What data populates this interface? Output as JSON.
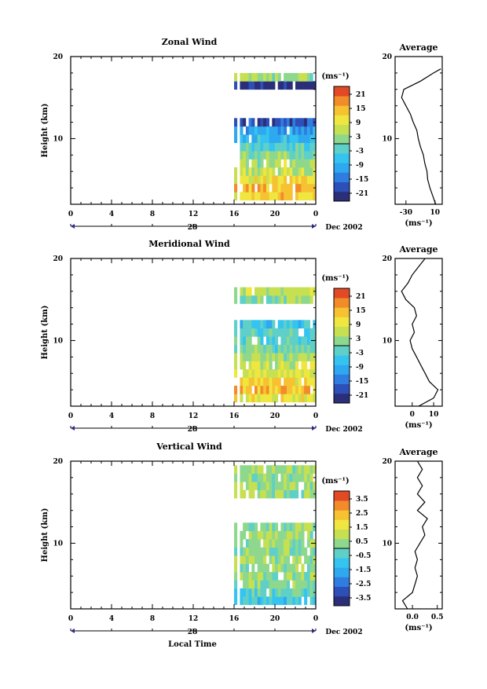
{
  "chart_data": [
    {
      "type": "heatmap",
      "title": "Zonal Wind",
      "ylabel": "Height (km)",
      "ylim": [
        2,
        20
      ],
      "y_ticks": [
        10,
        20
      ],
      "x_ticks": [
        "0",
        "4",
        "8",
        "12",
        "16",
        "20",
        "0"
      ],
      "date_day": "28",
      "date_label": "Dec 2002",
      "colorbar": {
        "unit": "(ms⁻¹)",
        "ticks": [
          "21",
          "15",
          "9",
          "3",
          "-3",
          "-9",
          "-15",
          "-21"
        ]
      },
      "data_start_hour": 16,
      "data_end_hour": 24,
      "rows": [
        {
          "height": 3,
          "value": 12
        },
        {
          "height": 4,
          "value": 14
        },
        {
          "height": 5,
          "value": 10
        },
        {
          "height": 6,
          "value": 6
        },
        {
          "height": 7,
          "value": 4
        },
        {
          "height": 8,
          "value": 2
        },
        {
          "height": 9,
          "value": -3
        },
        {
          "height": 10,
          "value": -6
        },
        {
          "height": 11,
          "value": -10
        },
        {
          "height": 12,
          "value": -18
        },
        {
          "height": 16.5,
          "value": -22
        },
        {
          "height": 17.5,
          "value": 3
        }
      ],
      "average": {
        "title": "Average",
        "xlabel": "(ms⁻¹)",
        "x_ticks": [
          "-30",
          "10"
        ],
        "xlim": [
          -45,
          20
        ],
        "profile": [
          {
            "h": 2,
            "v": 11
          },
          {
            "h": 3,
            "v": 7
          },
          {
            "h": 4,
            "v": 3
          },
          {
            "h": 5,
            "v": 0
          },
          {
            "h": 6,
            "v": -1
          },
          {
            "h": 7,
            "v": -4
          },
          {
            "h": 8,
            "v": -6
          },
          {
            "h": 9,
            "v": -10
          },
          {
            "h": 10,
            "v": -13
          },
          {
            "h": 11,
            "v": -15
          },
          {
            "h": 12,
            "v": -20
          },
          {
            "h": 13,
            "v": -24
          },
          {
            "h": 14,
            "v": -30
          },
          {
            "h": 15,
            "v": -36
          },
          {
            "h": 16,
            "v": -33
          },
          {
            "h": 17,
            "v": -10
          },
          {
            "h": 18,
            "v": 8
          },
          {
            "h": 18.5,
            "v": 18
          }
        ]
      }
    },
    {
      "type": "heatmap",
      "title": "Meridional Wind",
      "ylabel": "Height (km)",
      "ylim": [
        2,
        20
      ],
      "y_ticks": [
        10,
        20
      ],
      "x_ticks": [
        "0",
        "4",
        "8",
        "12",
        "16",
        "20",
        "0"
      ],
      "date_day": "28",
      "date_label": "Dec 2002",
      "colorbar": {
        "unit": "(ms⁻¹)",
        "ticks": [
          "21",
          "15",
          "9",
          "3",
          "-3",
          "-9",
          "-15",
          "-21"
        ]
      },
      "data_start_hour": 16,
      "data_end_hour": 24,
      "rows": [
        {
          "height": 3,
          "value": 9
        },
        {
          "height": 4,
          "value": 14
        },
        {
          "height": 5,
          "value": 11
        },
        {
          "height": 6,
          "value": 8
        },
        {
          "height": 7,
          "value": 6
        },
        {
          "height": 8,
          "value": 4
        },
        {
          "height": 9,
          "value": 0
        },
        {
          "height": 10,
          "value": -2
        },
        {
          "height": 11,
          "value": -3
        },
        {
          "height": 12,
          "value": -5
        },
        {
          "height": 15,
          "value": 2
        },
        {
          "height": 16,
          "value": 6
        }
      ],
      "average": {
        "title": "Average",
        "xlabel": "(ms⁻¹)",
        "x_ticks": [
          "0",
          "10"
        ],
        "xlim": [
          -8,
          14
        ],
        "profile": [
          {
            "h": 2,
            "v": 3
          },
          {
            "h": 3,
            "v": 10
          },
          {
            "h": 4,
            "v": 12
          },
          {
            "h": 5,
            "v": 8
          },
          {
            "h": 6,
            "v": 6
          },
          {
            "h": 7,
            "v": 4
          },
          {
            "h": 8,
            "v": 2
          },
          {
            "h": 9,
            "v": 0
          },
          {
            "h": 10,
            "v": -1
          },
          {
            "h": 11,
            "v": 1
          },
          {
            "h": 12,
            "v": 0
          },
          {
            "h": 13,
            "v": 2
          },
          {
            "h": 14,
            "v": 1
          },
          {
            "h": 15,
            "v": -3
          },
          {
            "h": 16,
            "v": -5
          },
          {
            "h": 17,
            "v": -2
          },
          {
            "h": 18,
            "v": 0
          },
          {
            "h": 19,
            "v": 3
          },
          {
            "h": 20,
            "v": 6
          }
        ]
      }
    },
    {
      "type": "heatmap",
      "title": "Vertical Wind",
      "ylabel": "Height (km)",
      "ylim": [
        2,
        20
      ],
      "y_ticks": [
        10,
        20
      ],
      "x_ticks": [
        "0",
        "4",
        "8",
        "12",
        "16",
        "20",
        "0"
      ],
      "date_day": "28",
      "date_label": "Dec 2002",
      "xlabel": "Local Time",
      "colorbar": {
        "unit": "(ms⁻¹)",
        "ticks": [
          "3.5",
          "2.5",
          "1.5",
          "0.5",
          "-0.5",
          "-1.5",
          "-2.5",
          "-3.5"
        ]
      },
      "data_start_hour": 16,
      "data_end_hour": 24,
      "rows": [
        {
          "height": 3,
          "value": -0.8
        },
        {
          "height": 4,
          "value": -0.3
        },
        {
          "height": 5,
          "value": 0.2
        },
        {
          "height": 6,
          "value": 0.4
        },
        {
          "height": 7,
          "value": 0.3
        },
        {
          "height": 8,
          "value": 0.5
        },
        {
          "height": 9,
          "value": 0.2
        },
        {
          "height": 10,
          "value": 0.4
        },
        {
          "height": 11,
          "value": 0.6
        },
        {
          "height": 12,
          "value": 0.3
        },
        {
          "height": 16,
          "value": 0.4
        },
        {
          "height": 17,
          "value": 0.5
        },
        {
          "height": 18,
          "value": 0.3
        },
        {
          "height": 19,
          "value": 0.6
        }
      ],
      "average": {
        "title": "Average",
        "xlabel": "(ms⁻¹)",
        "x_ticks": [
          "0.0",
          "0.5"
        ],
        "xlim": [
          -0.35,
          0.6
        ],
        "profile": [
          {
            "h": 2,
            "v": -0.1
          },
          {
            "h": 3,
            "v": -0.2
          },
          {
            "h": 4,
            "v": 0.0
          },
          {
            "h": 5,
            "v": 0.05
          },
          {
            "h": 6,
            "v": 0.1
          },
          {
            "h": 7,
            "v": 0.05
          },
          {
            "h": 8,
            "v": 0.1
          },
          {
            "h": 9,
            "v": 0.05
          },
          {
            "h": 10,
            "v": 0.15
          },
          {
            "h": 11,
            "v": 0.25
          },
          {
            "h": 12,
            "v": 0.2
          },
          {
            "h": 13,
            "v": 0.3
          },
          {
            "h": 14,
            "v": 0.1
          },
          {
            "h": 15,
            "v": 0.25
          },
          {
            "h": 16,
            "v": 0.1
          },
          {
            "h": 17,
            "v": 0.2
          },
          {
            "h": 18,
            "v": 0.1
          },
          {
            "h": 19,
            "v": 0.2
          },
          {
            "h": 20,
            "v": 0.1
          }
        ]
      }
    }
  ]
}
